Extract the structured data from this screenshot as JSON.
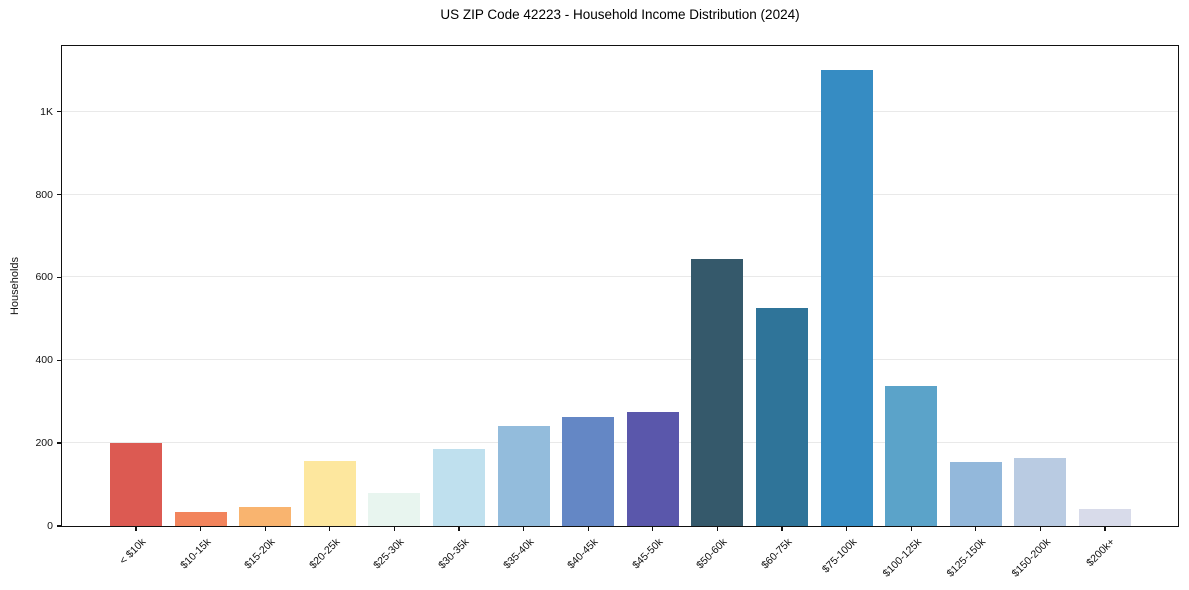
{
  "title": "US ZIP Code 42223 - Household Income Distribution (2024)",
  "chart_data": {
    "type": "bar",
    "title": "US ZIP Code 42223 - Household Income Distribution (2024)",
    "xlabel": "",
    "ylabel": "Households",
    "categories": [
      "< $10k",
      "$10-15k",
      "$15-20k",
      "$20-25k",
      "$25-30k",
      "$30-35k",
      "$35-40k",
      "$40-45k",
      "$45-50k",
      "$50-60k",
      "$60-75k",
      "$75-100k",
      "$100-125k",
      "$125-150k",
      "$150-200k",
      "$200k+"
    ],
    "values": [
      200,
      34,
      46,
      158,
      80,
      185,
      242,
      263,
      274,
      645,
      525,
      1100,
      338,
      154,
      165,
      40
    ],
    "bar_colors": [
      "#dc5a52",
      "#f2845c",
      "#f9b46f",
      "#fde79e",
      "#e8f5ef",
      "#bfe0ee",
      "#93bcdc",
      "#6487c5",
      "#5a57ab",
      "#35596b",
      "#2f7499",
      "#368cc3",
      "#5ba3c9",
      "#93b8db",
      "#b9cbe2",
      "#d8dbea"
    ],
    "y_tick_labels": [
      "0",
      "200",
      "400",
      "600",
      "800",
      "1K"
    ],
    "y_tick_values": [
      0,
      200,
      400,
      600,
      800,
      1000
    ],
    "ylim": [
      0,
      1156
    ],
    "grid": "horizontal",
    "grid_color": "#e9e9e9",
    "spine_color": "#111111",
    "legend": "none",
    "background_color": "#ffffff"
  }
}
